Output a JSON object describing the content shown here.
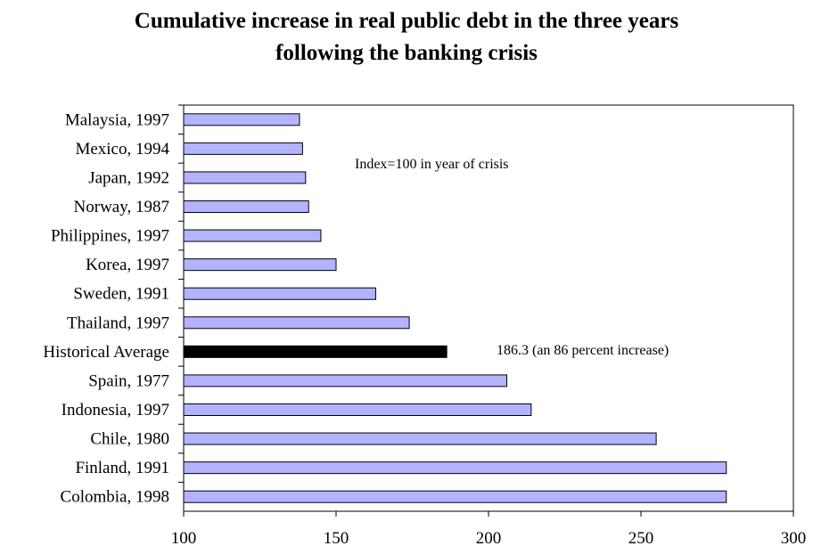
{
  "title_line1": "Cumulative increase in real public debt in the three years",
  "title_line2": "following the banking crisis",
  "chart_data": {
    "type": "bar",
    "orientation": "horizontal",
    "title": "Cumulative increase in real public debt in the three years following the banking crisis",
    "categories": [
      "Malaysia, 1997",
      "Mexico, 1994",
      "Japan, 1992",
      "Norway, 1987",
      "Philippines, 1997",
      "Korea, 1997",
      "Sweden, 1991",
      "Thailand, 1997",
      "Historical Average",
      "Spain, 1977",
      "Indonesia, 1997",
      "Chile, 1980",
      "Finland, 1991",
      "Colombia, 1998"
    ],
    "values": [
      138,
      139,
      140,
      141,
      145,
      150,
      163,
      174,
      186.3,
      206,
      214,
      255,
      278,
      278
    ],
    "highlight_category": "Historical Average",
    "xlim": [
      100,
      300
    ],
    "xticks": [
      100,
      150,
      200,
      250,
      300
    ],
    "xlabel": "",
    "ylabel": "",
    "grid": false,
    "legend": "none",
    "annotations": [
      {
        "text": "Index=100 in year of crisis"
      },
      {
        "text": "186.3 (an 86 percent increase)"
      }
    ],
    "colors": {
      "bar": "#b3b3ff",
      "highlight": "#000000",
      "border": "#000000"
    }
  }
}
